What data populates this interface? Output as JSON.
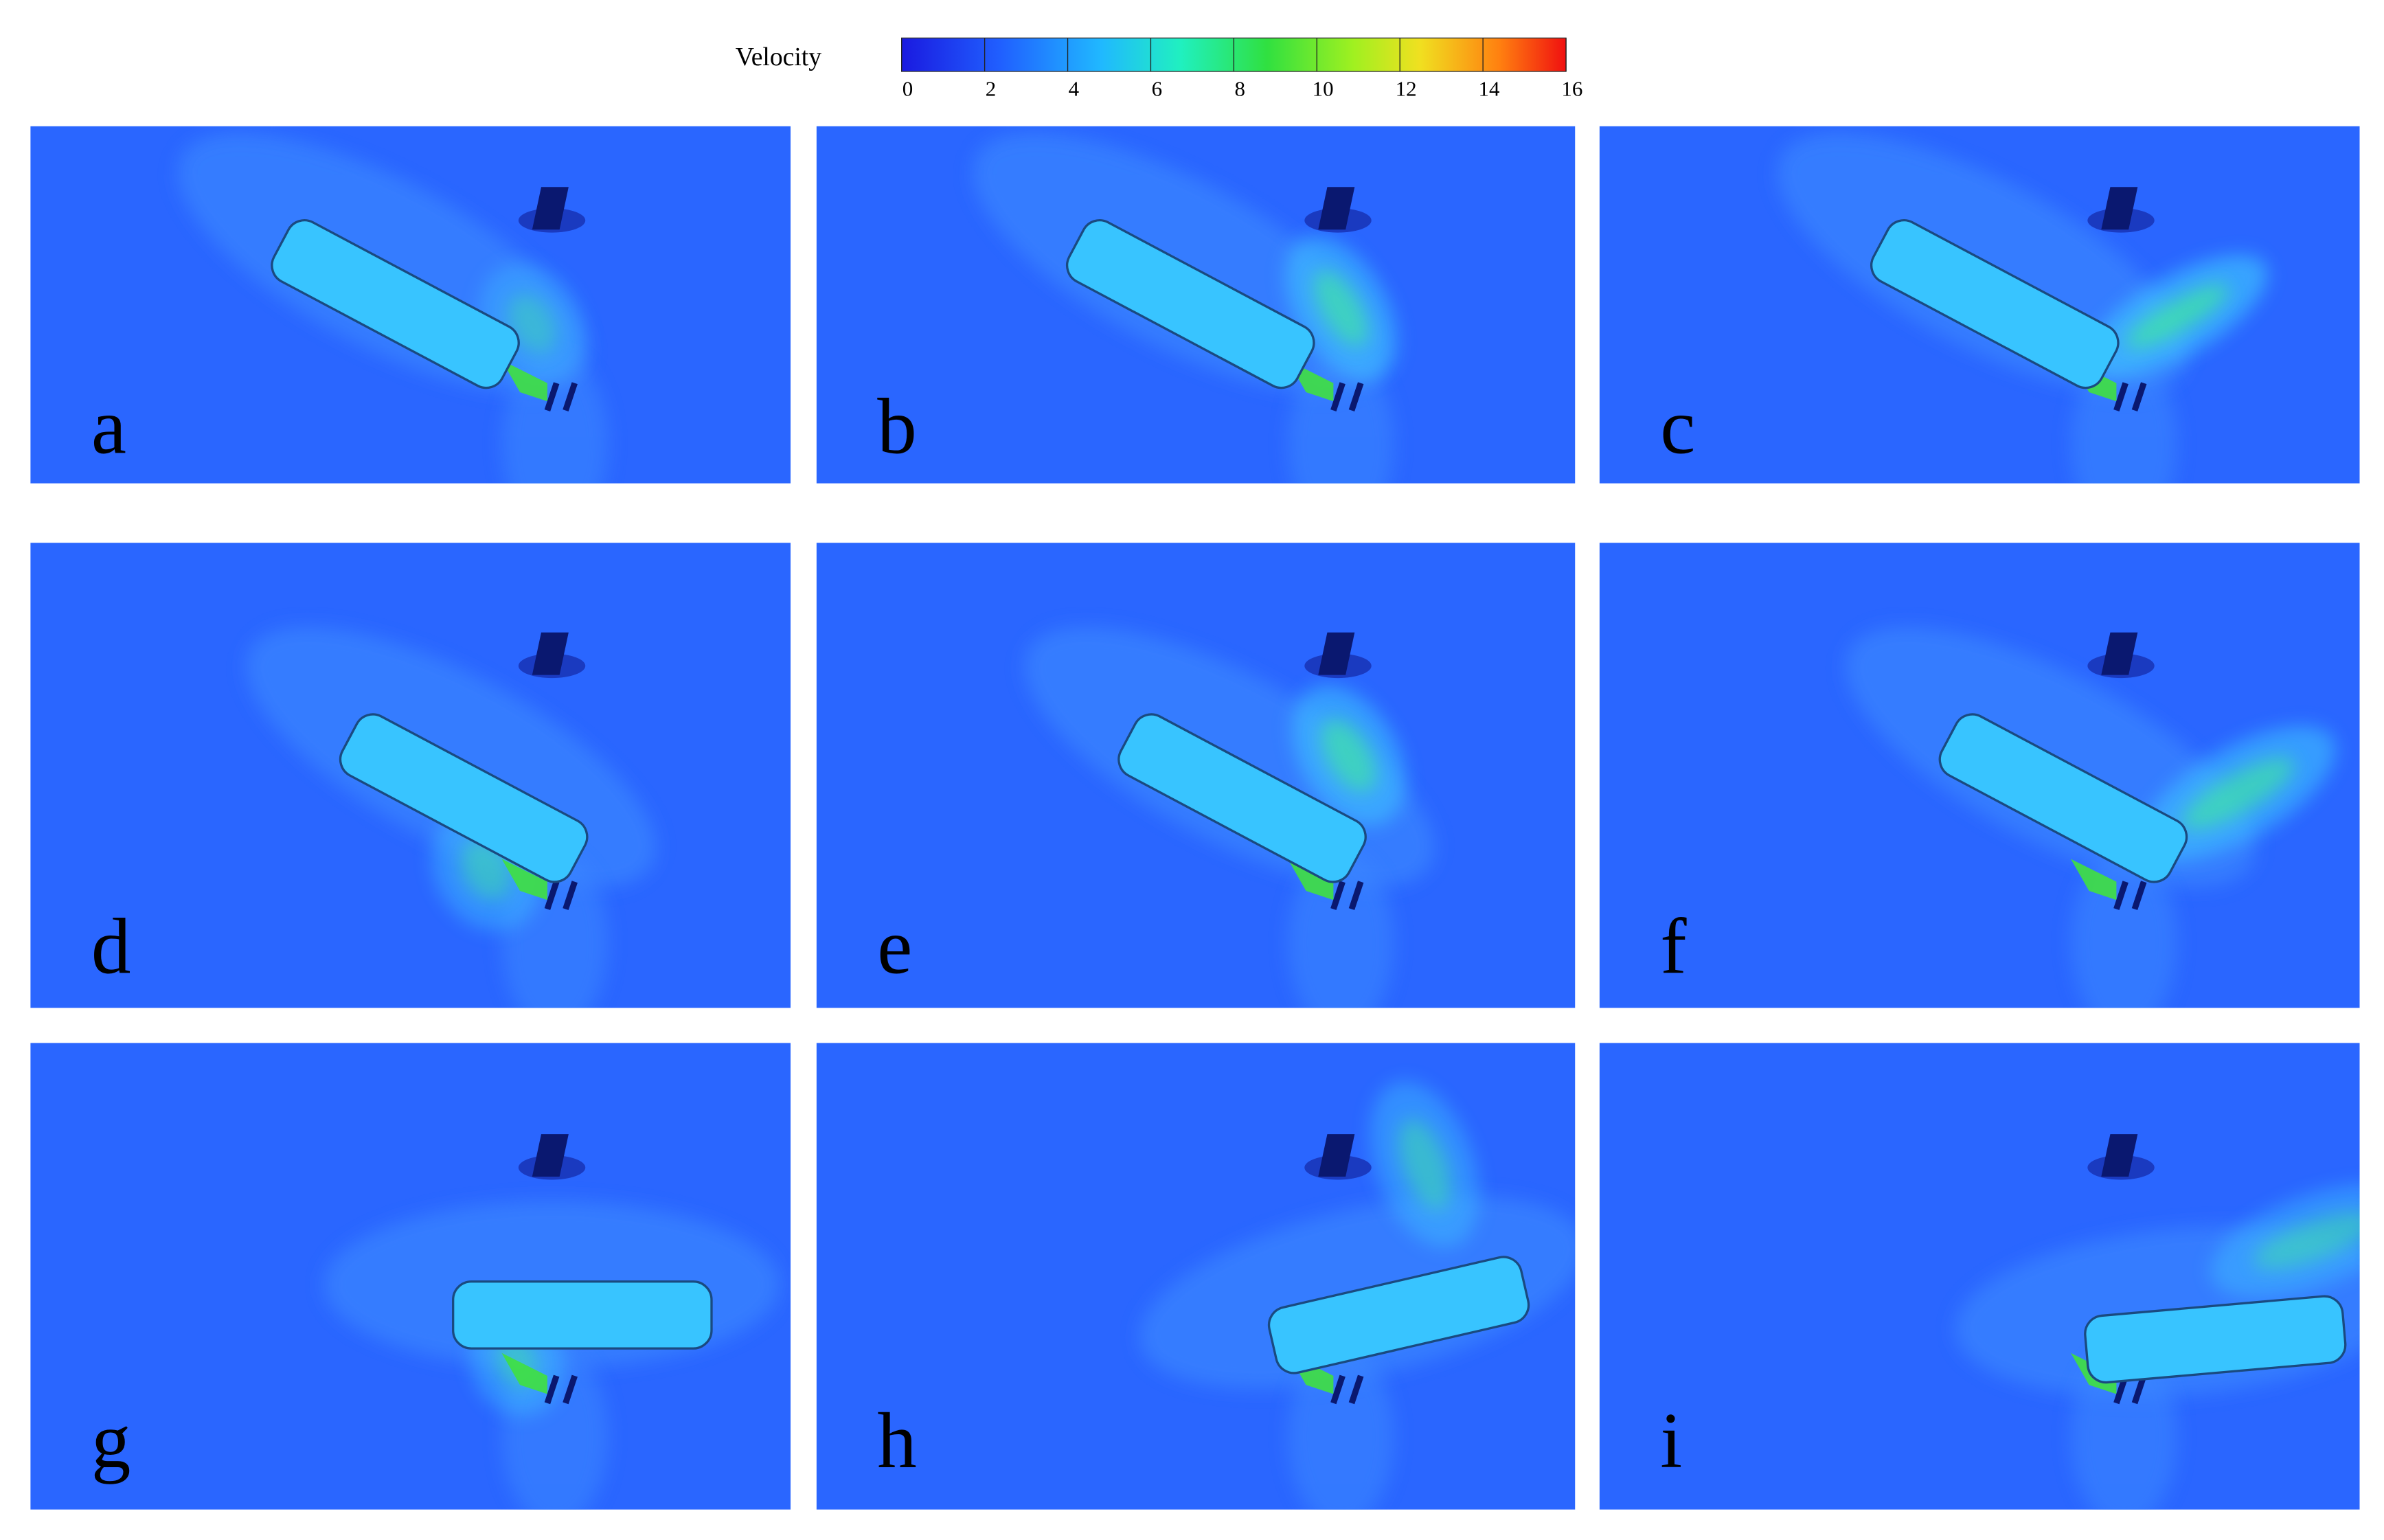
{
  "colorbar": {
    "title": "Velocity",
    "ticks": [
      0,
      2,
      4,
      6,
      8,
      10,
      12,
      14,
      16
    ]
  },
  "panels": [
    {
      "label": "a"
    },
    {
      "label": "b"
    },
    {
      "label": "c"
    },
    {
      "label": "d"
    },
    {
      "label": "e"
    },
    {
      "label": "f"
    },
    {
      "label": "g"
    },
    {
      "label": "h"
    },
    {
      "label": "i"
    }
  ]
}
